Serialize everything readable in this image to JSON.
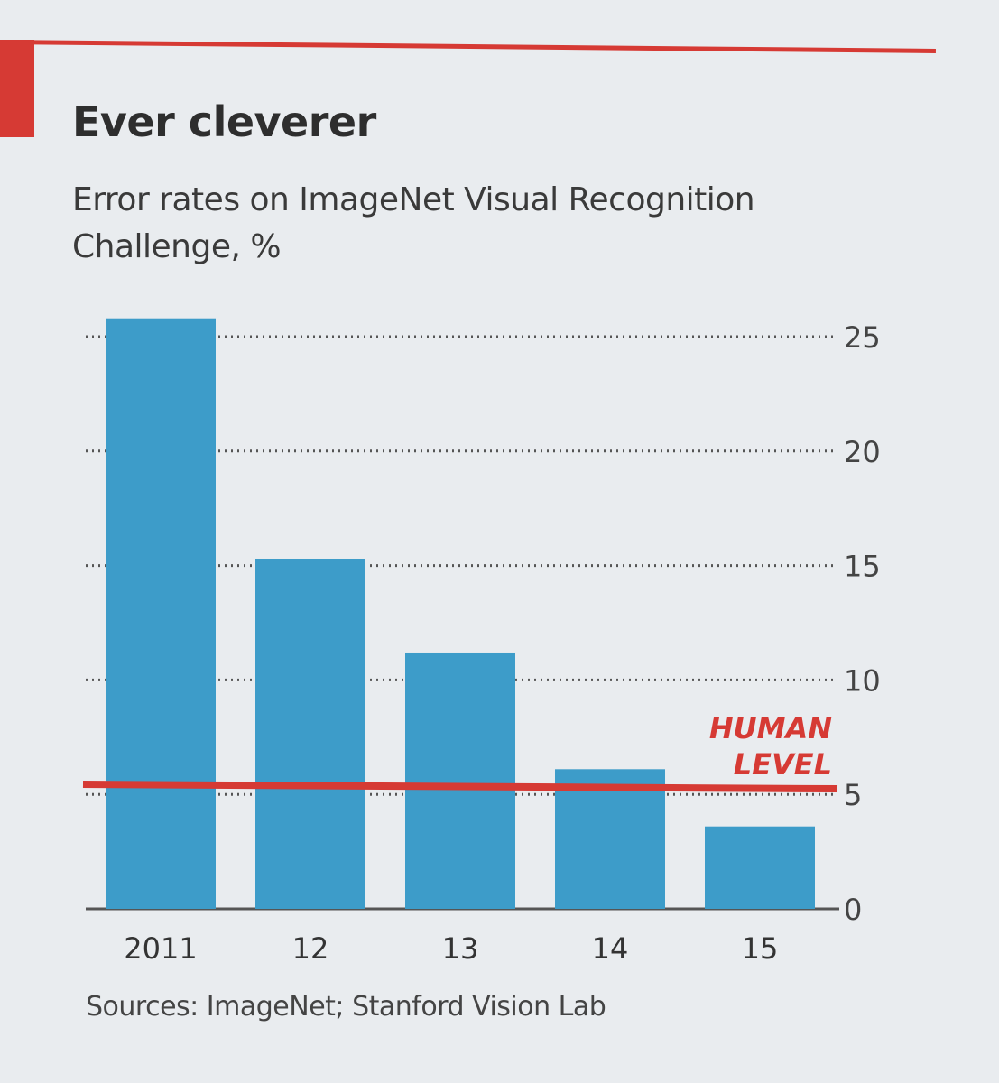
{
  "chart_data": {
    "type": "bar",
    "title": "Ever cleverer",
    "subtitle": "Error rates on ImageNet Visual Recognition Challenge, %",
    "categories": [
      "2011",
      "12",
      "13",
      "14",
      "15"
    ],
    "values": [
      25.8,
      15.3,
      11.2,
      6.1,
      3.6
    ],
    "ylim": [
      0,
      25
    ],
    "yticks": [
      0,
      5,
      10,
      15,
      20,
      25
    ],
    "y_axis_side": "right",
    "grid": "dotted horizontal",
    "reference_line": {
      "label_line1": "HUMAN",
      "label_line2": "LEVEL",
      "value": 5.4
    },
    "source": "Sources: ImageNet; Stanford Vision Lab",
    "colors": {
      "bar": "#3d9cc9",
      "accent": "#d63a34",
      "grid": "#555555"
    }
  }
}
